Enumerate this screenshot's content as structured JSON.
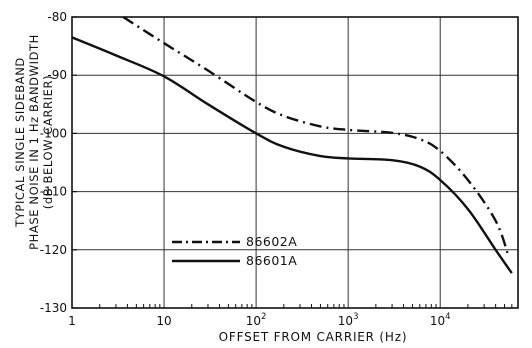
{
  "chart_data": {
    "type": "line",
    "x_scale": "log",
    "ylabel_lines": [
      "TYPICAL SINGLE SIDEBAND",
      "PHASE NOISE IN 1 Hz BANDWIDTH",
      "(dB BELOW CARRIER)"
    ],
    "xlabel": "OFFSET FROM CARRIER (Hz)",
    "xlim": [
      1,
      70000
    ],
    "ylim": [
      -130,
      -80
    ],
    "grid": true,
    "legend_position": "lower-left",
    "y_ticks": [
      -80,
      -90,
      -100,
      -110,
      -120,
      -130
    ],
    "y_tick_labels": [
      "-80",
      "-90",
      "-100",
      "-110",
      "-120",
      "-130"
    ],
    "x_ticks": [
      {
        "value": 1,
        "base": "1",
        "exp": ""
      },
      {
        "value": 10,
        "base": "10",
        "exp": ""
      },
      {
        "value": 100,
        "base": "10",
        "exp": "2"
      },
      {
        "value": 1000,
        "base": "10",
        "exp": "3"
      },
      {
        "value": 10000,
        "base": "10",
        "exp": "4"
      }
    ],
    "series": [
      {
        "name": "86602A",
        "style": "dash-dot",
        "x": [
          3.6,
          10,
          30,
          100,
          200,
          500,
          1000,
          3000,
          6000,
          10000,
          20000,
          40000,
          55000
        ],
        "y": [
          -80,
          -84.5,
          -89.2,
          -94.6,
          -97.0,
          -98.8,
          -99.4,
          -99.9,
          -101.0,
          -103.0,
          -108.0,
          -115.0,
          -121.0
        ]
      },
      {
        "name": "86601A",
        "style": "solid",
        "x": [
          1,
          3,
          10,
          30,
          100,
          200,
          500,
          1000,
          3000,
          6000,
          10000,
          20000,
          40000,
          60000
        ],
        "y": [
          -83.5,
          -86.6,
          -90.2,
          -95.0,
          -100.0,
          -102.3,
          -103.9,
          -104.3,
          -104.6,
          -105.7,
          -108.0,
          -113.0,
          -120.0,
          -124.0
        ]
      }
    ]
  }
}
